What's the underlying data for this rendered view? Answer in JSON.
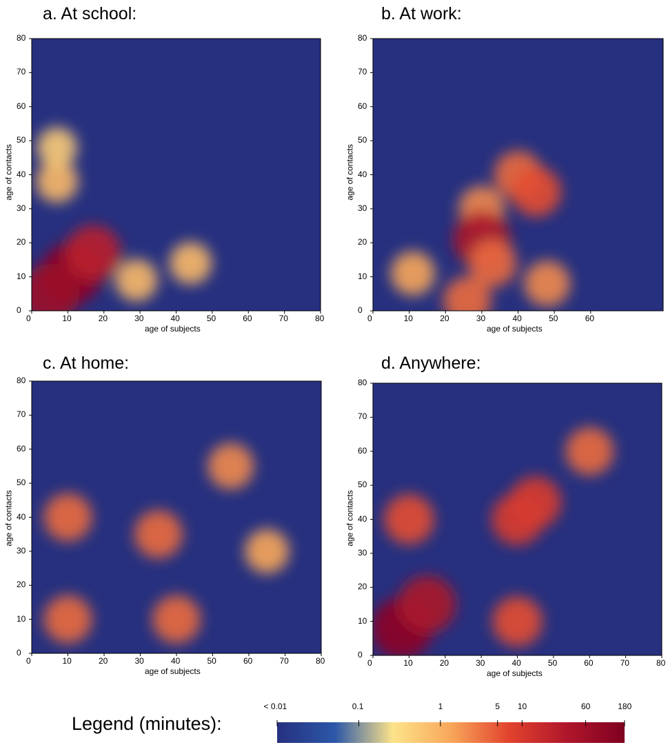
{
  "chart_data": [
    {
      "type": "heatmap",
      "title": "a. At school:",
      "xlabel": "age of subjects",
      "ylabel": "age of contacts",
      "xlim": [
        0,
        80
      ],
      "ylim": [
        0,
        80
      ],
      "xticks": [
        "0",
        "10",
        "20",
        "30",
        "40",
        "50",
        "60",
        "70",
        "80"
      ],
      "yticks": [
        "0",
        "10",
        "20",
        "30",
        "40",
        "50",
        "60",
        "70",
        "80"
      ],
      "hotspots": [
        {
          "x": 11,
          "y": 11,
          "level": 0.95
        },
        {
          "x": 5,
          "y": 5,
          "level": 0.9
        },
        {
          "x": 17,
          "y": 17,
          "level": 0.8
        },
        {
          "x": 7,
          "y": 38,
          "level": 0.45
        },
        {
          "x": 7,
          "y": 48,
          "level": 0.4
        },
        {
          "x": 29,
          "y": 9,
          "level": 0.45
        },
        {
          "x": 44,
          "y": 14,
          "level": 0.45
        }
      ]
    },
    {
      "type": "heatmap",
      "title": "b. At work:",
      "xlabel": "age of subjects",
      "ylabel": "age of contacts",
      "xlim": [
        0,
        80
      ],
      "ylim": [
        0,
        80
      ],
      "xticks": [
        "0",
        "10",
        "20",
        "30",
        "40",
        "50",
        "60"
      ],
      "yticks": [
        "0",
        "10",
        "20",
        "30",
        "40",
        "50",
        "60",
        "70",
        "80"
      ],
      "hotspots": [
        {
          "x": 40,
          "y": 40,
          "level": 0.6
        },
        {
          "x": 45,
          "y": 35,
          "level": 0.65
        },
        {
          "x": 30,
          "y": 30,
          "level": 0.55
        },
        {
          "x": 30,
          "y": 21,
          "level": 0.85
        },
        {
          "x": 33,
          "y": 14,
          "level": 0.6
        },
        {
          "x": 26,
          "y": 3,
          "level": 0.6
        },
        {
          "x": 48,
          "y": 8,
          "level": 0.55
        },
        {
          "x": 11,
          "y": 11,
          "level": 0.5
        }
      ]
    },
    {
      "type": "heatmap",
      "title": "c. At home:",
      "xlabel": "age of subjects",
      "ylabel": "age of contacts",
      "xlim": [
        0,
        80
      ],
      "ylim": [
        0,
        80
      ],
      "xticks": [
        "0",
        "10",
        "20",
        "30",
        "40",
        "50",
        "60",
        "70",
        "80"
      ],
      "yticks": [
        "0",
        "10",
        "20",
        "30",
        "40",
        "50",
        "60",
        "70",
        "80"
      ],
      "hotspots": [
        {
          "x": 10,
          "y": 10,
          "level": 0.6
        },
        {
          "x": 35,
          "y": 35,
          "level": 0.6
        },
        {
          "x": 55,
          "y": 55,
          "level": 0.55
        },
        {
          "x": 10,
          "y": 40,
          "level": 0.6
        },
        {
          "x": 40,
          "y": 10,
          "level": 0.6
        },
        {
          "x": 65,
          "y": 30,
          "level": 0.5
        }
      ]
    },
    {
      "type": "heatmap",
      "title": "d. Anywhere:",
      "xlabel": "age of subjects",
      "ylabel": "age of contacts",
      "xlim": [
        0,
        80
      ],
      "ylim": [
        0,
        80
      ],
      "xticks": [
        "0",
        "10",
        "20",
        "30",
        "40",
        "50",
        "60",
        "70",
        "80"
      ],
      "yticks": [
        "0",
        "10",
        "20",
        "30",
        "40",
        "50",
        "60",
        "70",
        "80"
      ],
      "hotspots": [
        {
          "x": 8,
          "y": 8,
          "level": 0.95
        },
        {
          "x": 15,
          "y": 15,
          "level": 0.85
        },
        {
          "x": 40,
          "y": 40,
          "level": 0.7
        },
        {
          "x": 45,
          "y": 45,
          "level": 0.7
        },
        {
          "x": 10,
          "y": 40,
          "level": 0.65
        },
        {
          "x": 40,
          "y": 10,
          "level": 0.65
        },
        {
          "x": 60,
          "y": 60,
          "level": 0.6
        }
      ]
    }
  ],
  "legend": {
    "title": "Legend (minutes):",
    "scale": "log",
    "ticks": [
      {
        "label": "< 0.01",
        "value": 0.01
      },
      {
        "label": "0.1",
        "value": 0.1
      },
      {
        "label": "1",
        "value": 1
      },
      {
        "label": "5",
        "value": 5
      },
      {
        "label": "10",
        "value": 10
      },
      {
        "label": "60",
        "value": 60
      },
      {
        "label": "180",
        "value": 180
      }
    ],
    "colors": [
      "#26307f",
      "#2c58a8",
      "#fde38a",
      "#f8a75a",
      "#e2432d",
      "#b0162b",
      "#7f0020"
    ]
  }
}
